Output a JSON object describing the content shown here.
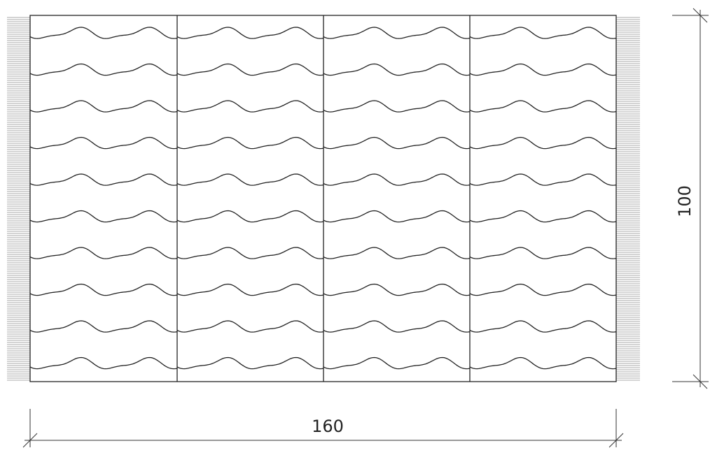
{
  "dimensions": {
    "width": 160,
    "height": 100
  }
}
